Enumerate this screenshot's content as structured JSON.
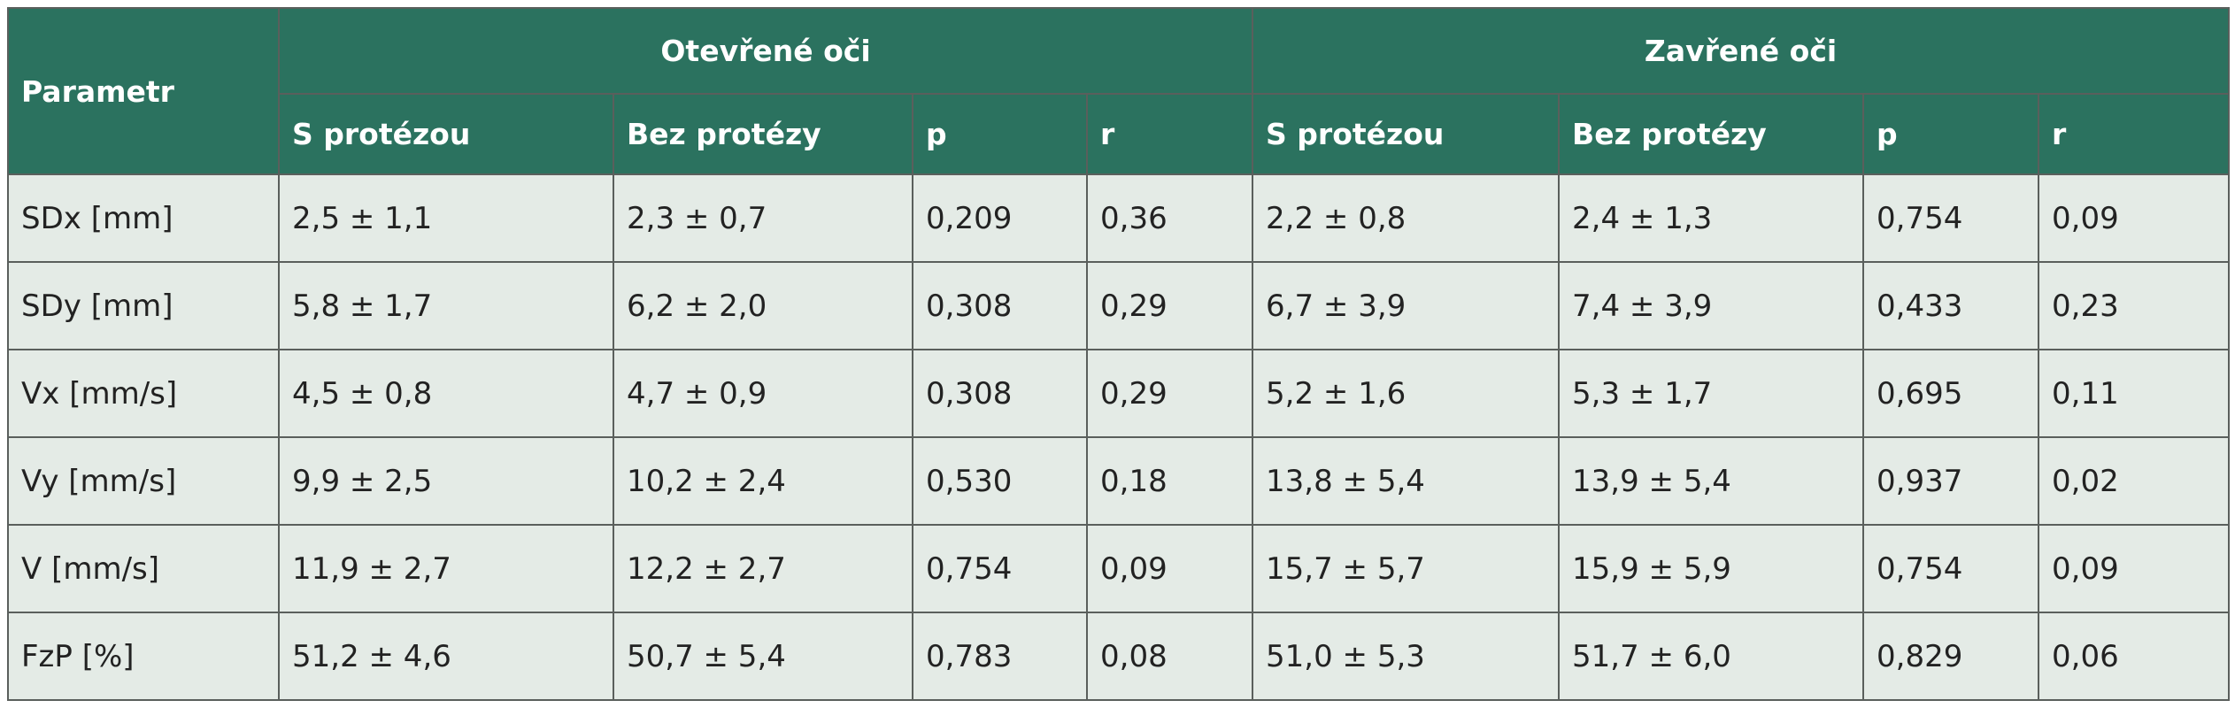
{
  "table": {
    "header": {
      "parameter": "Parametr",
      "groups": [
        "Otevřené oči",
        "Zavřené oči"
      ],
      "columns": [
        "S protézou",
        "Bez protézy",
        "p",
        "r",
        "S protézou",
        "Bez protézy",
        "p",
        "r"
      ]
    },
    "rows": [
      [
        "SDx [mm]",
        "2,5 ± 1,1",
        "2,3 ± 0,7",
        "0,209",
        "0,36",
        "2,2 ± 0,8",
        "2,4 ± 1,3",
        "0,754",
        "0,09"
      ],
      [
        "SDy [mm]",
        "5,8 ± 1,7",
        "6,2 ± 2,0",
        "0,308",
        "0,29",
        "6,7 ± 3,9",
        "7,4 ± 3,9",
        "0,433",
        "0,23"
      ],
      [
        "Vx [mm/s]",
        "4,5 ± 0,8",
        "4,7 ± 0,9",
        "0,308",
        "0,29",
        "5,2 ± 1,6",
        "5,3 ± 1,7",
        "0,695",
        "0,11"
      ],
      [
        "Vy [mm/s]",
        "9,9 ± 2,5",
        "10,2 ± 2,4",
        "0,530",
        "0,18",
        "13,8 ± 5,4",
        "13,9 ± 5,4",
        "0,937",
        "0,02"
      ],
      [
        "V [mm/s]",
        "11,9 ± 2,7",
        "12,2 ± 2,7",
        "0,754",
        "0,09",
        "15,7 ± 5,7",
        "15,9 ± 5,9",
        "0,754",
        "0,09"
      ],
      [
        "FzP [%]",
        "51,2 ± 4,6",
        "50,7 ± 5,4",
        "0,783",
        "0,08",
        "51,0 ± 5,3",
        "51,7 ± 6,0",
        "0,829",
        "0,06"
      ]
    ]
  }
}
